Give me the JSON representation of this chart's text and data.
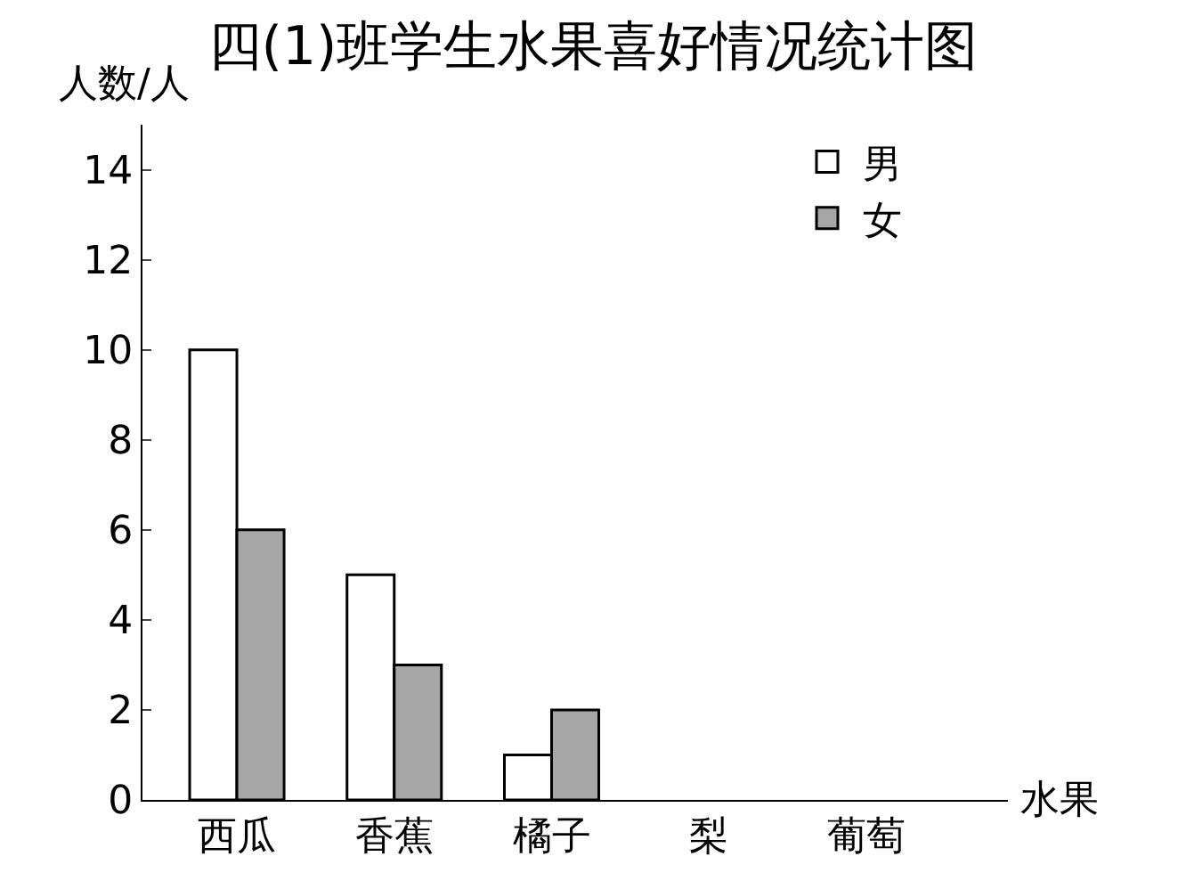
{
  "chart_data": {
    "type": "bar",
    "title": "四(1)班学生水果喜好情况统计图",
    "ylabel": "人数/人",
    "xlabel": "水果",
    "categories": [
      "西瓜",
      "香蕉",
      "橘子",
      "梨",
      "葡萄"
    ],
    "series": [
      {
        "name": "男",
        "color": "#ffffff",
        "values": [
          10,
          5,
          1,
          null,
          null
        ]
      },
      {
        "name": "女",
        "color": "#a6a6a6",
        "values": [
          6,
          3,
          2,
          null,
          null
        ]
      }
    ],
    "ylim": [
      0,
      15
    ],
    "yticks": [
      0,
      2,
      4,
      6,
      8,
      10,
      12,
      14
    ],
    "legend": "top right"
  }
}
